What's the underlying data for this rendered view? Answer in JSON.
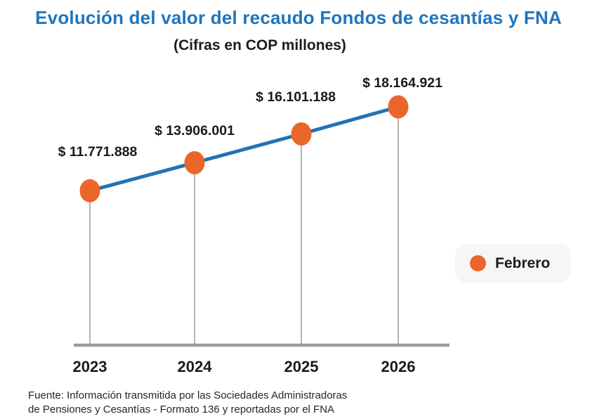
{
  "title": "Evolución del valor del recaudo Fondos de cesantías y FNA",
  "subtitle": "(Cifras en COP millones)",
  "legend": {
    "label": "Febrero"
  },
  "source": {
    "line1": "Fuente: Información transmitida por las Sociedades Administradoras",
    "line2": "de Pensiones y Cesantías - Formato 136 y reportadas por el FNA"
  },
  "chart_data": {
    "type": "line",
    "title": "Evolución del valor del recaudo Fondos de cesantías y FNA",
    "subtitle": "(Cifras en COP millones)",
    "categories": [
      "2023",
      "2024",
      "2025",
      "2026"
    ],
    "series": [
      {
        "name": "Febrero",
        "values": [
          11771888,
          13906001,
          16101188,
          18164921
        ]
      }
    ],
    "point_labels": [
      "$ 11.771.888",
      "$ 13.906.001",
      "$ 16.101.188",
      "$ 18.164.921"
    ],
    "xlabel": "",
    "ylabel": "",
    "ylim": [
      0,
      18164921
    ],
    "grid": false,
    "legend_position": "right",
    "colors": {
      "line": "#2272B5",
      "marker": "#EB662A",
      "axis": "#9C9C9C",
      "drop_line": "#8C8C8C",
      "title": "#1F75BC",
      "text": "#1A1A1A",
      "legend_bg": "#F6F6F5"
    }
  }
}
